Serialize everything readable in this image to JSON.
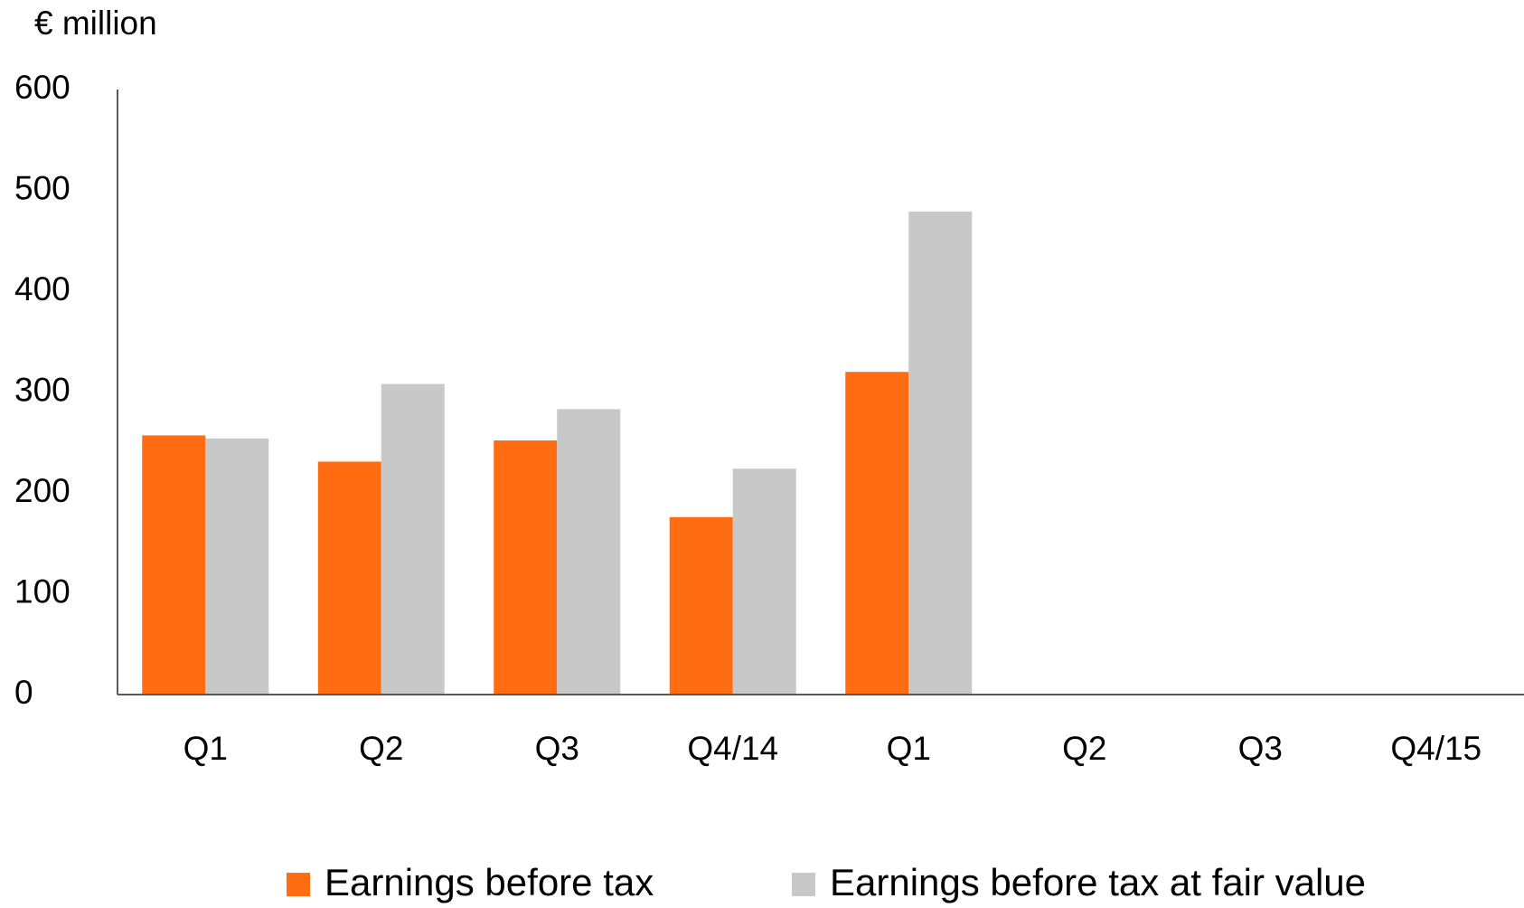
{
  "chart_data": {
    "type": "bar",
    "y_axis_label": "€ million",
    "categories": [
      "Q1",
      "Q2",
      "Q3",
      "Q4/14",
      "Q1",
      "Q2",
      "Q3",
      "Q4/15"
    ],
    "series": [
      {
        "name": "Earnings before tax",
        "color": "#ff6c12",
        "values": [
          257,
          231,
          252,
          176,
          320,
          null,
          null,
          null
        ]
      },
      {
        "name": "Earnings before tax at fair value",
        "color": "#c8c8c8",
        "values": [
          254,
          308,
          283,
          224,
          479,
          null,
          null,
          null
        ]
      }
    ],
    "ylim": [
      0,
      600
    ],
    "yticks": [
      0,
      100,
      200,
      300,
      400,
      500,
      600
    ],
    "grid": false
  }
}
